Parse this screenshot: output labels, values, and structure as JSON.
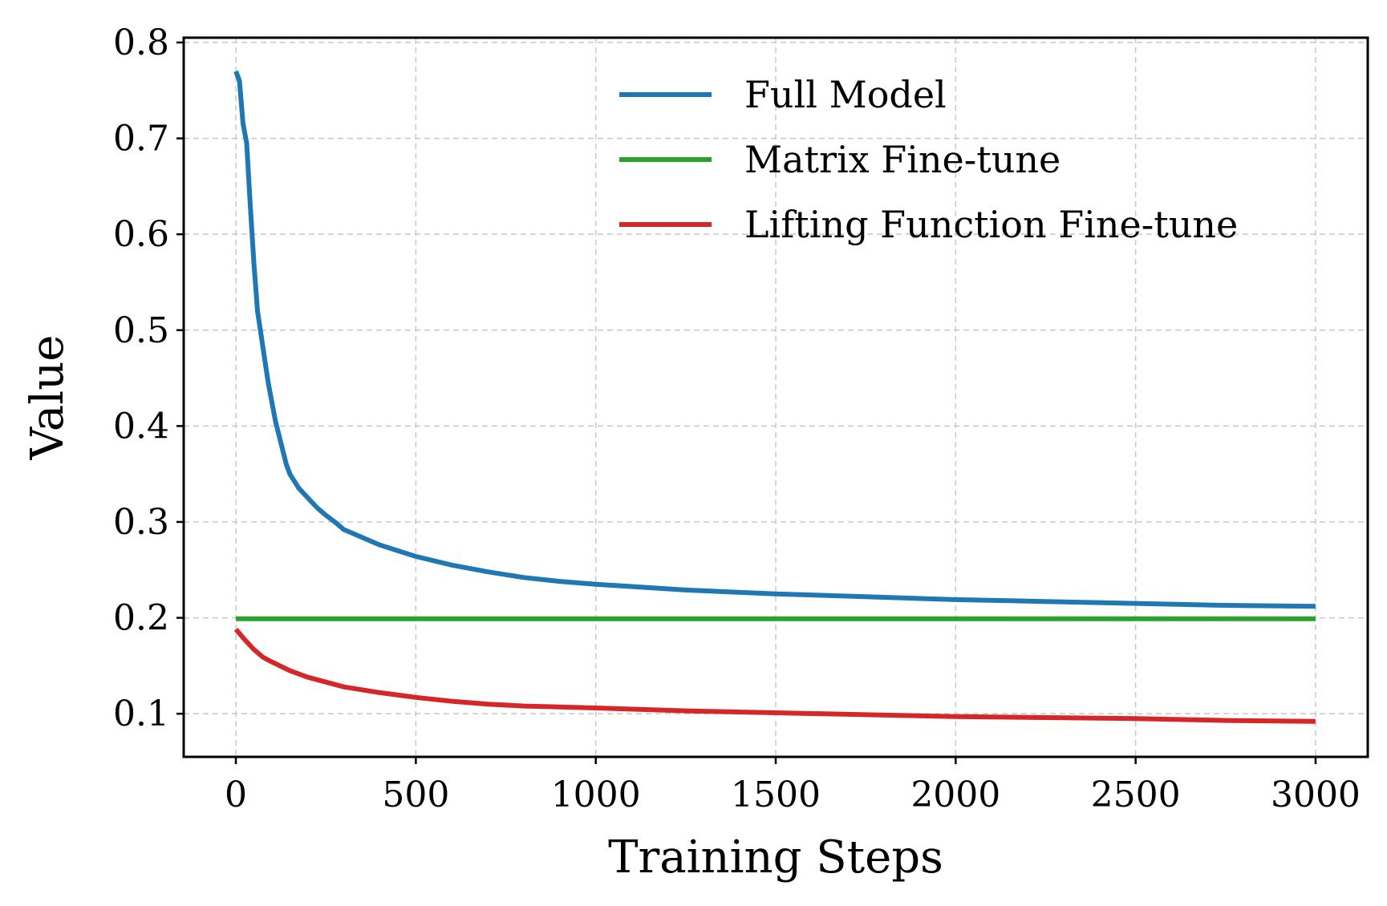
{
  "chart_data": {
    "type": "line",
    "title": "",
    "xlabel": "Training Steps",
    "ylabel": "Value",
    "xlim": [
      -145,
      3145
    ],
    "ylim": [
      0.055,
      0.805
    ],
    "xticks": [
      0,
      500,
      1000,
      1500,
      2000,
      2500,
      3000
    ],
    "yticks": [
      0.1,
      0.2,
      0.3,
      0.4,
      0.5,
      0.6,
      0.7,
      0.8
    ],
    "xtick_labels": [
      "0",
      "500",
      "1000",
      "1500",
      "2000",
      "2500",
      "3000"
    ],
    "ytick_labels": [
      "0.1",
      "0.2",
      "0.3",
      "0.4",
      "0.5",
      "0.6",
      "0.7",
      "0.8"
    ],
    "grid": true,
    "legend_position": "top-right",
    "series": [
      {
        "name": "Full Model",
        "color": "#1f77b4",
        "x": [
          0,
          10,
          20,
          30,
          40,
          50,
          60,
          70,
          80,
          90,
          100,
          110,
          120,
          130,
          140,
          150,
          175,
          200,
          225,
          250,
          275,
          300,
          350,
          400,
          450,
          500,
          600,
          700,
          800,
          900,
          1000,
          1250,
          1500,
          1750,
          2000,
          2250,
          2500,
          2750,
          3000
        ],
        "y": [
          0.77,
          0.76,
          0.715,
          0.695,
          0.63,
          0.57,
          0.52,
          0.495,
          0.47,
          0.445,
          0.425,
          0.405,
          0.39,
          0.375,
          0.36,
          0.35,
          0.335,
          0.325,
          0.315,
          0.307,
          0.3,
          0.292,
          0.284,
          0.276,
          0.27,
          0.264,
          0.255,
          0.248,
          0.242,
          0.238,
          0.235,
          0.229,
          0.225,
          0.222,
          0.219,
          0.217,
          0.215,
          0.213,
          0.212
        ]
      },
      {
        "name": "Matrix Fine-tune",
        "color": "#2ca02c",
        "x": [
          0,
          500,
          1000,
          1500,
          2000,
          2500,
          3000
        ],
        "y": [
          0.199,
          0.199,
          0.199,
          0.199,
          0.199,
          0.199,
          0.199
        ]
      },
      {
        "name": "Lifting Function Fine-tune",
        "color": "#d62728",
        "x": [
          0,
          25,
          50,
          75,
          100,
          150,
          200,
          250,
          300,
          400,
          500,
          600,
          700,
          800,
          900,
          1000,
          1250,
          1500,
          1750,
          2000,
          2250,
          2500,
          2750,
          3000
        ],
        "y": [
          0.188,
          0.177,
          0.167,
          0.159,
          0.154,
          0.145,
          0.138,
          0.133,
          0.128,
          0.122,
          0.117,
          0.113,
          0.11,
          0.108,
          0.107,
          0.106,
          0.103,
          0.101,
          0.099,
          0.097,
          0.096,
          0.095,
          0.093,
          0.092
        ]
      }
    ]
  }
}
